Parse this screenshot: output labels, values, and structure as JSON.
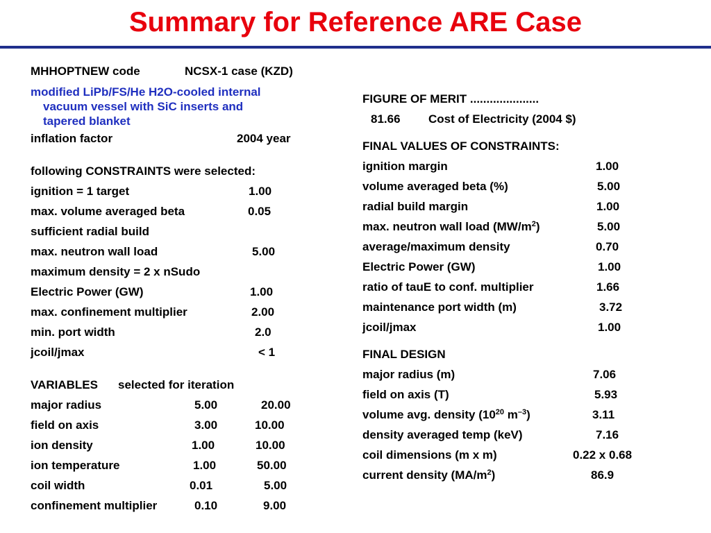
{
  "title": "Summary for Reference ARE Case",
  "left": {
    "code_label": "MHHOPTNEW code",
    "code_case": "NCSX-1 case (KZD)",
    "description": [
      "modified LiPb/FS/He H2O-cooled internal",
      "vacuum vessel with SiC inserts and",
      "tapered blanket"
    ],
    "inflation_label": "inflation factor",
    "inflation_value": "2004 year",
    "constraints_heading": "following CONSTRAINTS were selected:",
    "constraints": [
      {
        "label": "ignition = 1 target",
        "value": "1.00"
      },
      {
        "label": "max. volume averaged beta",
        "value": "0.05"
      },
      {
        "label": "sufficient radial build",
        "value": ""
      },
      {
        "label": "max. neutron wall load",
        "value": "5.00"
      },
      {
        "label": "maximum density = 2 x nSudo",
        "value": ""
      },
      {
        "label": "Electric Power (GW)",
        "value": "1.00"
      },
      {
        "label": "max. confinement multiplier",
        "value": "2.00"
      },
      {
        "label": "min. port width",
        "value": "2.0"
      },
      {
        "label": "jcoil/jmax",
        "value": "< 1"
      }
    ],
    "variables_heading_a": "VARIABLES",
    "variables_heading_b": "selected for iteration",
    "variables": [
      {
        "label": "major radius",
        "min": "5.00",
        "max": "20.00"
      },
      {
        "label": "field on axis",
        "min": "3.00",
        "max": "10.00"
      },
      {
        "label": "ion density",
        "min": "1.00",
        "max": "10.00"
      },
      {
        "label": "ion temperature",
        "min": "1.00",
        "max": "50.00"
      },
      {
        "label": "coil width",
        "min": "0.01",
        "max": "5.00"
      },
      {
        "label": "confinement multiplier",
        "min": "0.10",
        "max": "9.00"
      }
    ]
  },
  "right": {
    "fom_heading": "FIGURE OF MERIT .....................",
    "fom_value": "81.66",
    "fom_label": "Cost of Electricity (2004 $)",
    "final_constraints_heading": "FINAL VALUES OF CONSTRAINTS:",
    "final_constraints": [
      {
        "label": "ignition margin",
        "value": "1.00"
      },
      {
        "label": "volume averaged beta (%)",
        "value": "5.00"
      },
      {
        "label": "radial build margin",
        "value": "1.00"
      },
      {
        "label_pre": "max. neutron wall load (MW/m",
        "sup": "2",
        "label_post": ")",
        "value": "5.00"
      },
      {
        "label": "average/maximum density",
        "value": "0.70"
      },
      {
        "label": "Electric Power (GW)",
        "value": "1.00"
      },
      {
        "label": "ratio of tauE to conf. multiplier",
        "value": "1.66"
      },
      {
        "label": "maintenance port width (m)",
        "value": "3.72"
      },
      {
        "label": "jcoil/jmax",
        "value": "1.00"
      }
    ],
    "final_design_heading": "FINAL DESIGN",
    "final_design": [
      {
        "label": "major radius (m)",
        "value": "7.06"
      },
      {
        "label": "field on axis (T)",
        "value": "5.93"
      },
      {
        "label_pre": "volume avg. density (10",
        "sup": "20",
        "label_mid": " m",
        "sup2": "–3",
        "label_post": ")",
        "value": "3.11"
      },
      {
        "label": "density averaged temp (keV)",
        "value": "7.16"
      },
      {
        "label": "coil dimensions (m x m)",
        "value": "0.22 x 0.68"
      },
      {
        "label_pre": "current density (MA/m",
        "sup": "2",
        "label_post": ")",
        "value": "86.9"
      }
    ]
  }
}
